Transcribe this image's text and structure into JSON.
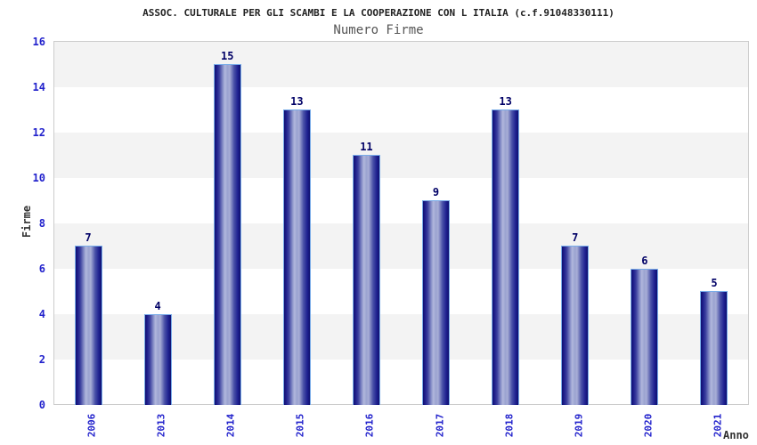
{
  "title": "ASSOC. CULTURALE PER GLI SCAMBI E LA COOPERAZIONE CON L ITALIA (c.f.91048330111)",
  "subtitle": "Numero Firme",
  "chart_data": {
    "type": "bar",
    "title": "ASSOC. CULTURALE PER GLI SCAMBI E LA COOPERAZIONE CON L ITALIA (c.f.91048330111)",
    "subtitle": "Numero Firme",
    "categories": [
      "2006",
      "2013",
      "2014",
      "2015",
      "2016",
      "2017",
      "2018",
      "2019",
      "2020",
      "2021"
    ],
    "values": [
      7,
      4,
      15,
      13,
      11,
      9,
      13,
      7,
      6,
      5
    ],
    "xlabel": "Anno",
    "ylabel": "Firme",
    "ylim": [
      0,
      16
    ],
    "yticks": [
      0,
      2,
      4,
      6,
      8,
      10,
      12,
      14,
      16
    ],
    "grid": "alternating-horizontal-bands",
    "legend": "none"
  },
  "colors": {
    "tick_label": "#2222cc",
    "value_label": "#000066",
    "title_text": "#222222",
    "subtitle_text": "#555555",
    "axis_title_text": "#333333",
    "band_gray": "#f3f3f3",
    "band_white": "#ffffff",
    "plot_border": "#cccccc",
    "bar_edge_dark": "#10106e",
    "bar_highlight": "#b2b8dd",
    "bar_border": "#79ace9",
    "background": "#ffffff"
  }
}
